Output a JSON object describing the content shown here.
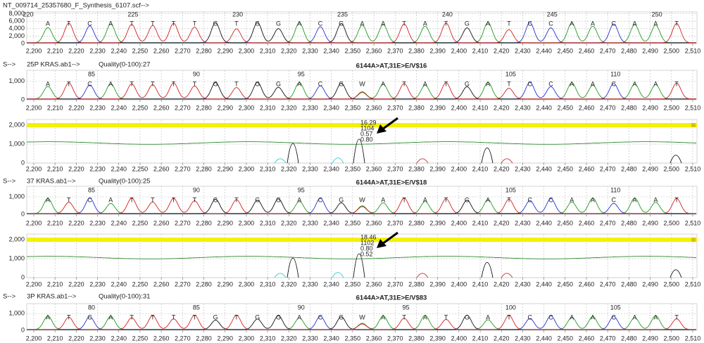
{
  "x_axis": {
    "xlim": [
      2196.7,
      2512
    ],
    "ticks": [
      {
        "value": 2200,
        "label": "2,200"
      },
      {
        "value": 2210,
        "label": "2,210"
      },
      {
        "value": 2220,
        "label": "2,220"
      },
      {
        "value": 2230,
        "label": "2,230"
      },
      {
        "value": 2240,
        "label": "2,240"
      },
      {
        "value": 2250,
        "label": "2,250"
      },
      {
        "value": 2260,
        "label": "2,260"
      },
      {
        "value": 2270,
        "label": "2,270"
      },
      {
        "value": 2280,
        "label": "2,280"
      },
      {
        "value": 2290,
        "label": "2,290"
      },
      {
        "value": 2300,
        "label": "2,300"
      },
      {
        "value": 2310,
        "label": "2,310"
      },
      {
        "value": 2320,
        "label": "2,320"
      },
      {
        "value": 2330,
        "label": "2,330"
      },
      {
        "value": 2340,
        "label": "2,340"
      },
      {
        "value": 2350,
        "label": "2,350"
      },
      {
        "value": 2360,
        "label": "2,360"
      },
      {
        "value": 2370,
        "label": "2,370"
      },
      {
        "value": 2380,
        "label": "2,380"
      },
      {
        "value": 2390,
        "label": "2,390"
      },
      {
        "value": 2400,
        "label": "2,400"
      },
      {
        "value": 2410,
        "label": "2,410"
      },
      {
        "value": 2420,
        "label": "2,420"
      },
      {
        "value": 2430,
        "label": "2,430"
      },
      {
        "value": 2440,
        "label": "2,440"
      },
      {
        "value": 2450,
        "label": "2,450"
      },
      {
        "value": 2460,
        "label": "2,460"
      },
      {
        "value": 2470,
        "label": "2,470"
      },
      {
        "value": 2480,
        "label": "2,480"
      },
      {
        "value": 2490,
        "label": "2,490"
      },
      {
        "value": 2500,
        "label": "2,500"
      },
      {
        "value": 2510,
        "label": "2,510"
      }
    ]
  },
  "reference": {
    "title": "NT_009714_25357680_F_Synthesis_6107.scf-->",
    "positions": [
      220,
      225,
      230,
      235,
      240,
      245,
      250
    ],
    "bases": [
      "A",
      "T",
      "C",
      "A",
      "T",
      "T",
      "T",
      "T",
      "G",
      "T",
      "G",
      "G",
      "A",
      "C",
      "G",
      "A",
      "A",
      "T",
      "A",
      "T",
      "G",
      "A",
      "T",
      "C",
      "C",
      "A",
      "A",
      "C",
      "A",
      "A",
      "T"
    ],
    "ylim": [
      0,
      8500
    ],
    "yticks": [
      0,
      {
        "value": 2000,
        "label": "2,000"
      },
      {
        "value": 4000,
        "label": "4,000"
      },
      {
        "value": 6000,
        "label": "6,000"
      },
      {
        "value": 8000,
        "label": "8,000"
      }
    ]
  },
  "samples": [
    {
      "prefix": "S-->",
      "name": "25P KRAS.ab1-->",
      "quality": "Quality(0-100):27",
      "mutation": "6144A>AT,31E>E/V$16",
      "positions": [
        85,
        90,
        95,
        105,
        110
      ],
      "bases": [
        "A",
        "T",
        "C",
        "A",
        "T",
        "T",
        "T",
        "T",
        "G",
        "T",
        "G",
        "G",
        "A",
        "C",
        "G",
        "W",
        "A",
        "T",
        "A",
        "T",
        "G",
        "A",
        "T",
        "C",
        "C",
        "A",
        "A",
        "C",
        "A",
        "A",
        "T"
      ],
      "ylim": [
        0,
        1600
      ],
      "yticks": [
        0,
        {
          "value": 1000,
          "label": "1,000"
        }
      ],
      "difference": {
        "ylim": [
          0,
          2300
        ],
        "yticks": [
          0,
          {
            "value": 1000,
            "label": "1,000"
          },
          {
            "value": 2000,
            "label": "2,000"
          }
        ],
        "annotations": [
          "16.29",
          "1104",
          "0.57",
          "0.80"
        ]
      }
    },
    {
      "prefix": "S-->",
      "name": "37 KRAS.ab1-->",
      "quality": "Quality(0-100):25",
      "mutation": "6144A>AT,31E>E/V$18",
      "positions": [
        85,
        90,
        95,
        105,
        110
      ],
      "bases": [
        "A",
        "T",
        "C",
        "A",
        "T",
        "T",
        "T",
        "T",
        "G",
        "T",
        "G",
        "G",
        "A",
        "C",
        "G",
        "W",
        "A",
        "T",
        "A",
        "T",
        "G",
        "A",
        "T",
        "C",
        "C",
        "A",
        "A",
        "C",
        "A",
        "A",
        "T"
      ],
      "ylim": [
        0,
        1600
      ],
      "yticks": [
        0,
        {
          "value": 1000,
          "label": "1,000"
        }
      ],
      "difference": {
        "ylim": [
          0,
          2300
        ],
        "yticks": [
          0,
          {
            "value": 1000,
            "label": "1,000"
          },
          {
            "value": 2000,
            "label": "2,000"
          }
        ],
        "annotations": [
          "18.46",
          "1102",
          "0.80",
          "0.52"
        ]
      }
    },
    {
      "prefix": "S-->",
      "name": "3P KRAS.ab1-->",
      "quality": "Quality(0-100):31",
      "mutation": "6144A>AT,31E>E/V$83",
      "positions": [
        80,
        85,
        90,
        95,
        100,
        105
      ],
      "bases": [
        "A",
        "T",
        "C",
        "A",
        "T",
        "T",
        "T",
        "T",
        "G",
        "T",
        "G",
        "G",
        "A",
        "C",
        "G",
        "W",
        "A",
        "T",
        "A",
        "T",
        "G",
        "A",
        "T",
        "C",
        "C",
        "A",
        "A",
        "C",
        "A",
        "A",
        "T"
      ],
      "ylim": [
        0,
        1600
      ],
      "yticks": [
        0,
        {
          "value": 1000,
          "label": "1,000"
        }
      ]
    }
  ]
}
